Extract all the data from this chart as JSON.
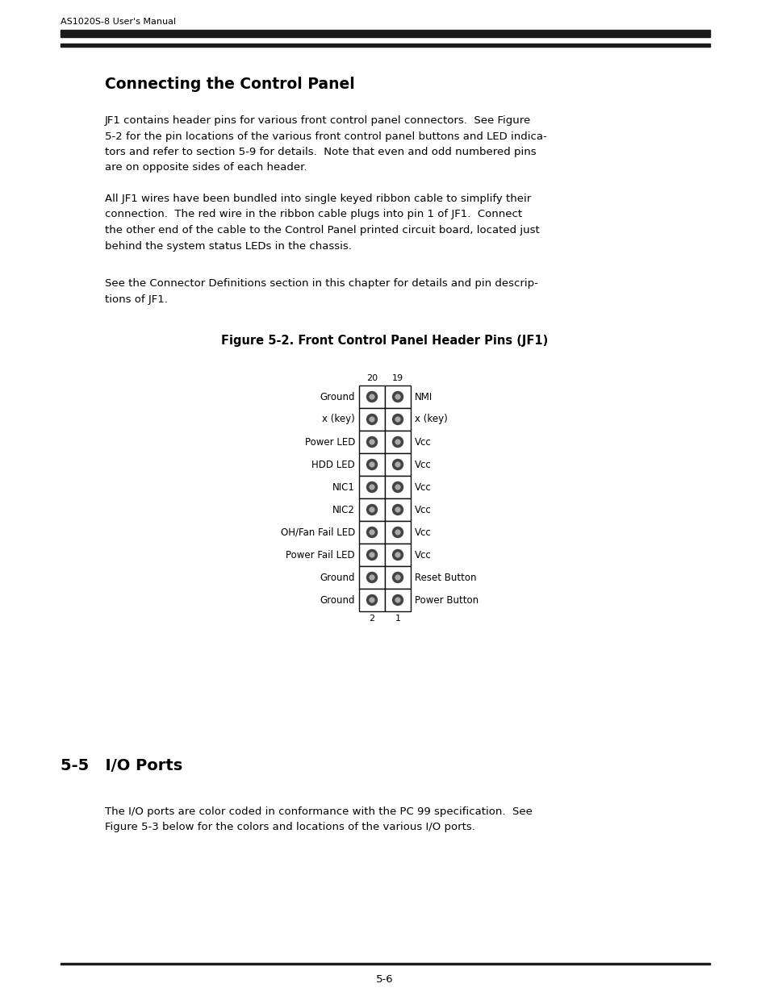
{
  "header_text": "AS1020S-8 User's Manual",
  "section_title": "Connecting the Control Panel",
  "para1_lines": [
    "JF1 contains header pins for various front control panel connectors.  See Figure",
    "5-2 for the pin locations of the various front control panel buttons and LED indica-",
    "tors and refer to section 5-9 for details.  Note that even and odd numbered pins",
    "are on opposite sides of each header."
  ],
  "para2_lines": [
    "All JF1 wires have been bundled into single keyed ribbon cable to simplify their",
    "connection.  The red wire in the ribbon cable plugs into pin 1 of JF1.  Connect",
    "the other end of the cable to the Control Panel printed circuit board, located just",
    "behind the system status LEDs in the chassis."
  ],
  "para3_lines": [
    "See the Connector Definitions section in this chapter for details and pin descrip-",
    "tions of JF1."
  ],
  "figure_title": "Figure 5-2. Front Control Panel Header Pins (JF1)",
  "pin_rows": [
    {
      "left_label": "Ground",
      "right_label": "NMI"
    },
    {
      "left_label": "x (key)",
      "right_label": "x (key)"
    },
    {
      "left_label": "Power LED",
      "right_label": "Vcc"
    },
    {
      "left_label": "HDD LED",
      "right_label": "Vcc"
    },
    {
      "left_label": "NIC1",
      "right_label": "Vcc"
    },
    {
      "left_label": "NIC2",
      "right_label": "Vcc"
    },
    {
      "left_label": "OH/Fan Fail LED",
      "right_label": "Vcc"
    },
    {
      "left_label": "Power Fail LED",
      "right_label": "Vcc"
    },
    {
      "left_label": "Ground",
      "right_label": "Reset Button"
    },
    {
      "left_label": "Ground",
      "right_label": "Power Button"
    }
  ],
  "section2_title": "5-5   I/O Ports",
  "section2_para_lines": [
    "The I/O ports are color coded in conformance with the PC 99 specification.  See",
    "Figure 5-3 below for the colors and locations of the various I/O ports."
  ],
  "footer_text": "5-6",
  "bg_color": "#ffffff",
  "text_color": "#000000",
  "bar_color": "#1a1a1a",
  "dot_outer_color": "#444444",
  "dot_inner_color": "#aaaaaa"
}
